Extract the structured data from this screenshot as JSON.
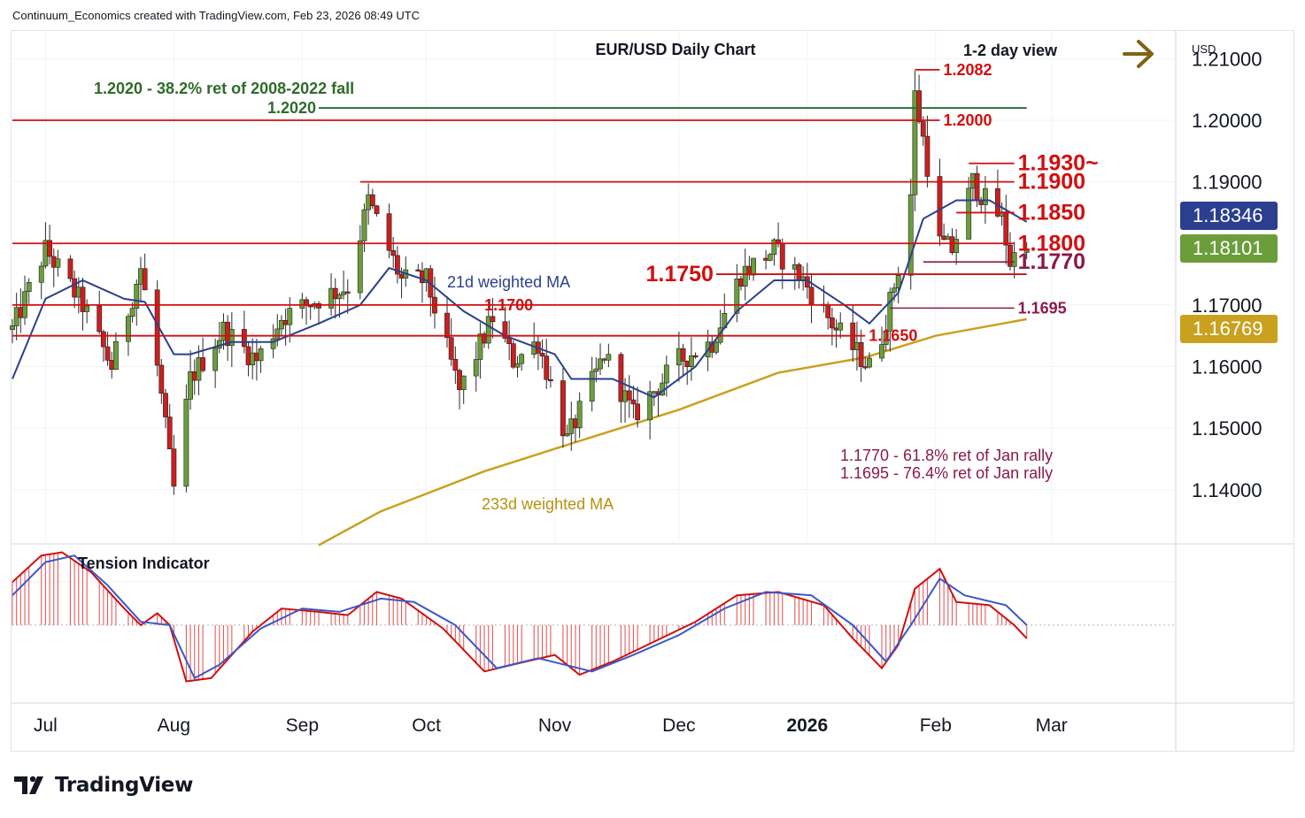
{
  "header": {
    "caption": "Continuum_Economics created with TradingView.com, Feb 23, 2026 08:49 UTC"
  },
  "chart_title": "EUR/USD Daily Chart",
  "view_label": "1-2 day view",
  "currency": "USD",
  "brand": "TradingView",
  "colors": {
    "up_candle": "#6b9e3b",
    "down_candle": "#cc1f1f",
    "wick": "#2a2a2a",
    "ma21": "#2b3f8e",
    "ma233": "#c9a11e",
    "level_red": "#d10f0f",
    "level_green": "#2e6b2a",
    "level_purple": "#8a1a4a",
    "arrow": "#806312",
    "badge_blue": "#2b3f8e",
    "badge_green": "#6b9e3b",
    "badge_gold": "#c9a11e",
    "tension_fill": "#e25b5b",
    "tension_blue": "#3a58c9"
  },
  "icons": {
    "arrow": "right-arrow-icon",
    "logo": "tradingview-logo-icon"
  },
  "chart_data": {
    "type": "candlestick",
    "title": "EUR/USD Daily Chart",
    "y_axis": {
      "ylim": [
        1.1315,
        1.2145
      ],
      "ticks": [
        "1.21000",
        "1.20000",
        "1.19000",
        "1.17000",
        "1.16000",
        "1.15000",
        "1.14000"
      ],
      "tick_values": [
        1.21,
        1.2,
        1.19,
        1.17,
        1.16,
        1.15,
        1.14
      ]
    },
    "x_axis": {
      "labels": [
        "Jul",
        "Aug",
        "Sep",
        "Oct",
        "Nov",
        "Dec",
        "2026",
        "Feb",
        "Mar"
      ],
      "label_dates": [
        "2025-07-01",
        "2025-08-01",
        "2025-09-01",
        "2025-10-01",
        "2025-11-01",
        "2025-12-01",
        "2026-01-01",
        "2026-02-01",
        "2026-03-01"
      ],
      "range": [
        "2025-06-23",
        "2026-03-31"
      ]
    },
    "price_badges": [
      {
        "value": "1.18346",
        "style": "blue"
      },
      {
        "value": "1.18101",
        "style": "green"
      },
      {
        "value": "1.16769",
        "style": "gold"
      }
    ],
    "levels": [
      {
        "label": "1.2082",
        "value": 1.2082,
        "from": "2026-01-27",
        "to": "2026-02-02",
        "color": "red",
        "label_size": "medium"
      },
      {
        "label": "1.2020",
        "value": 1.202,
        "from": "2025-09-05",
        "to": "2026-02-23",
        "color": "green",
        "label_size": "medium",
        "label_side": "left"
      },
      {
        "label": "1.2000",
        "value": 1.2,
        "from": "2025-06-23",
        "to": "2026-02-02",
        "color": "red",
        "label_size": "medium"
      },
      {
        "label": "1.1930~",
        "value": 1.193,
        "from": "2026-02-09",
        "to": "2026-02-20",
        "color": "red",
        "label_size": "large"
      },
      {
        "label": "1.1900",
        "value": 1.19,
        "from": "2025-09-15",
        "to": "2026-02-20",
        "color": "red",
        "label_size": "large"
      },
      {
        "label": "1.1850",
        "value": 1.185,
        "from": "2026-02-06",
        "to": "2026-02-20",
        "color": "red",
        "label_size": "large"
      },
      {
        "label": "1.1800",
        "value": 1.18,
        "from": "2025-06-23",
        "to": "2026-02-20",
        "color": "red",
        "label_size": "large"
      },
      {
        "label": "1.1770",
        "value": 1.177,
        "from": "2026-01-29",
        "to": "2026-02-20",
        "color": "purple",
        "label_size": "large"
      },
      {
        "label": "1.1750",
        "value": 1.175,
        "from": "2025-12-10",
        "to": "2026-02-23",
        "color": "red",
        "label_size": "large",
        "label_side": "left"
      },
      {
        "label": "1.1700",
        "value": 1.17,
        "from": "2025-06-23",
        "to": "2026-01-19",
        "color": "red",
        "label_size": "medium",
        "label_pos": "2025-10-15"
      },
      {
        "label": "1.1695",
        "value": 1.1695,
        "from": "2026-01-21",
        "to": "2026-02-20",
        "color": "purple",
        "label_size": "medium"
      },
      {
        "label": "1.1650",
        "value": 1.165,
        "from": "2025-06-23",
        "to": "2026-01-15",
        "color": "red",
        "label_size": "medium"
      }
    ],
    "annotations": [
      {
        "text": "1.2020 - 38.2% ret of 2008-2022 fall",
        "color": "green"
      },
      {
        "text": "21d weighted MA",
        "color": "blue"
      },
      {
        "text": "233d weighted MA",
        "color": "gold"
      },
      {
        "text": "1.1770 - 61.8% ret of Jan rally",
        "color": "purple"
      },
      {
        "text": "1.1695 - 76.4% ret of Jan rally",
        "color": "purple"
      }
    ],
    "anchors": [
      {
        "date": "2025-06-23",
        "close": 1.166
      },
      {
        "date": "2025-07-01",
        "close": 1.179
      },
      {
        "date": "2025-07-10",
        "close": 1.17
      },
      {
        "date": "2025-07-17",
        "close": 1.16
      },
      {
        "date": "2025-07-24",
        "close": 1.176
      },
      {
        "date": "2025-07-28",
        "close": 1.16
      },
      {
        "date": "2025-08-01",
        "close": 1.14
      },
      {
        "date": "2025-08-05",
        "close": 1.158
      },
      {
        "date": "2025-08-13",
        "close": 1.166
      },
      {
        "date": "2025-08-21",
        "close": 1.161
      },
      {
        "date": "2025-08-27",
        "close": 1.168
      },
      {
        "date": "2025-09-05",
        "close": 1.171
      },
      {
        "date": "2025-09-12",
        "close": 1.173
      },
      {
        "date": "2025-09-17",
        "close": 1.187
      },
      {
        "date": "2025-09-25",
        "close": 1.174
      },
      {
        "date": "2025-10-01",
        "close": 1.174
      },
      {
        "date": "2025-10-09",
        "close": 1.156
      },
      {
        "date": "2025-10-17",
        "close": 1.168
      },
      {
        "date": "2025-10-22",
        "close": 1.161
      },
      {
        "date": "2025-10-28",
        "close": 1.164
      },
      {
        "date": "2025-11-04",
        "close": 1.148
      },
      {
        "date": "2025-11-13",
        "close": 1.162
      },
      {
        "date": "2025-11-20",
        "close": 1.152
      },
      {
        "date": "2025-12-01",
        "close": 1.161
      },
      {
        "date": "2025-12-09",
        "close": 1.164
      },
      {
        "date": "2025-12-16",
        "close": 1.175
      },
      {
        "date": "2025-12-24",
        "close": 1.179
      },
      {
        "date": "2025-12-31",
        "close": 1.174
      },
      {
        "date": "2026-01-08",
        "close": 1.166
      },
      {
        "date": "2026-01-16",
        "close": 1.16
      },
      {
        "date": "2026-01-19",
        "close": 1.165
      },
      {
        "date": "2026-01-23",
        "close": 1.176
      },
      {
        "date": "2026-01-26",
        "close": 1.188
      },
      {
        "date": "2026-01-27",
        "close": 1.204
      },
      {
        "date": "2026-01-29",
        "close": 1.197
      },
      {
        "date": "2026-02-02",
        "close": 1.18
      },
      {
        "date": "2026-02-05",
        "close": 1.179
      },
      {
        "date": "2026-02-10",
        "close": 1.19
      },
      {
        "date": "2026-02-13",
        "close": 1.187
      },
      {
        "date": "2026-02-17",
        "close": 1.184
      },
      {
        "date": "2026-02-19",
        "close": 1.177
      },
      {
        "date": "2026-02-23",
        "close": 1.181
      }
    ],
    "ma21": {
      "name": "21d weighted MA",
      "points": [
        [
          "2025-06-23",
          1.158
        ],
        [
          "2025-07-01",
          1.171
        ],
        [
          "2025-07-10",
          1.174
        ],
        [
          "2025-07-20",
          1.171
        ],
        [
          "2025-07-25",
          1.1705
        ],
        [
          "2025-08-01",
          1.162
        ],
        [
          "2025-08-05",
          1.162
        ],
        [
          "2025-08-15",
          1.164
        ],
        [
          "2025-08-25",
          1.164
        ],
        [
          "2025-09-05",
          1.167
        ],
        [
          "2025-09-15",
          1.17
        ],
        [
          "2025-09-22",
          1.176
        ],
        [
          "2025-10-01",
          1.174
        ],
        [
          "2025-10-10",
          1.169
        ],
        [
          "2025-10-20",
          1.165
        ],
        [
          "2025-11-01",
          1.162
        ],
        [
          "2025-11-05",
          1.158
        ],
        [
          "2025-11-15",
          1.158
        ],
        [
          "2025-11-25",
          1.155
        ],
        [
          "2025-12-05",
          1.16
        ],
        [
          "2025-12-15",
          1.169
        ],
        [
          "2025-12-24",
          1.174
        ],
        [
          "2026-01-01",
          1.174
        ],
        [
          "2026-01-10",
          1.17
        ],
        [
          "2026-01-16",
          1.167
        ],
        [
          "2026-01-23",
          1.172
        ],
        [
          "2026-01-29",
          1.184
        ],
        [
          "2026-02-06",
          1.187
        ],
        [
          "2026-02-14",
          1.187
        ],
        [
          "2026-02-23",
          1.1835
        ]
      ]
    },
    "ma233": {
      "name": "233d weighted MA",
      "points": [
        [
          "2025-09-05",
          1.131
        ],
        [
          "2025-09-20",
          1.1365
        ],
        [
          "2025-10-15",
          1.143
        ],
        [
          "2025-11-05",
          1.1475
        ],
        [
          "2025-12-01",
          1.153
        ],
        [
          "2025-12-25",
          1.159
        ],
        [
          "2026-01-15",
          1.1615
        ],
        [
          "2026-02-01",
          1.165
        ],
        [
          "2026-02-23",
          1.1677
        ]
      ]
    },
    "tension": {
      "label": "Tension Indicator",
      "ylim": [
        -1.15,
        1.2
      ],
      "histogram": [
        [
          "2025-06-23",
          0.65
        ],
        [
          "2025-06-30",
          1.05
        ],
        [
          "2025-07-05",
          1.1
        ],
        [
          "2025-07-12",
          0.8
        ],
        [
          "2025-07-20",
          0.25
        ],
        [
          "2025-07-24",
          0.0
        ],
        [
          "2025-07-28",
          0.18
        ],
        [
          "2025-07-31",
          0.0
        ],
        [
          "2025-08-04",
          -0.85
        ],
        [
          "2025-08-10",
          -0.8
        ],
        [
          "2025-08-20",
          -0.1
        ],
        [
          "2025-08-27",
          0.25
        ],
        [
          "2025-09-05",
          0.2
        ],
        [
          "2025-09-12",
          0.15
        ],
        [
          "2025-09-19",
          0.5
        ],
        [
          "2025-09-25",
          0.4
        ],
        [
          "2025-10-05",
          -0.05
        ],
        [
          "2025-10-15",
          -0.7
        ],
        [
          "2025-10-25",
          -0.55
        ],
        [
          "2025-11-01",
          -0.45
        ],
        [
          "2025-11-07",
          -0.75
        ],
        [
          "2025-11-15",
          -0.55
        ],
        [
          "2025-11-25",
          -0.25
        ],
        [
          "2025-12-05",
          0.05
        ],
        [
          "2025-12-15",
          0.45
        ],
        [
          "2025-12-25",
          0.5
        ],
        [
          "2026-01-05",
          0.3
        ],
        [
          "2026-01-12",
          -0.2
        ],
        [
          "2026-01-19",
          -0.65
        ],
        [
          "2026-01-23",
          -0.3
        ],
        [
          "2026-01-27",
          0.55
        ],
        [
          "2026-02-02",
          0.85
        ],
        [
          "2026-02-06",
          0.35
        ],
        [
          "2026-02-14",
          0.3
        ],
        [
          "2026-02-20",
          0.0
        ],
        [
          "2026-02-23",
          -0.2
        ]
      ],
      "signal": [
        [
          "2025-06-23",
          0.45
        ],
        [
          "2025-07-01",
          0.95
        ],
        [
          "2025-07-08",
          1.05
        ],
        [
          "2025-07-16",
          0.6
        ],
        [
          "2025-07-24",
          0.05
        ],
        [
          "2025-07-31",
          0.0
        ],
        [
          "2025-08-06",
          -0.8
        ],
        [
          "2025-08-12",
          -0.6
        ],
        [
          "2025-08-22",
          -0.05
        ],
        [
          "2025-09-01",
          0.25
        ],
        [
          "2025-09-10",
          0.2
        ],
        [
          "2025-09-20",
          0.4
        ],
        [
          "2025-09-28",
          0.35
        ],
        [
          "2025-10-08",
          0.0
        ],
        [
          "2025-10-18",
          -0.65
        ],
        [
          "2025-10-28",
          -0.5
        ],
        [
          "2025-11-10",
          -0.7
        ],
        [
          "2025-11-20",
          -0.45
        ],
        [
          "2025-12-01",
          -0.15
        ],
        [
          "2025-12-12",
          0.25
        ],
        [
          "2025-12-22",
          0.5
        ],
        [
          "2026-01-02",
          0.45
        ],
        [
          "2026-01-12",
          0.0
        ],
        [
          "2026-01-20",
          -0.55
        ],
        [
          "2026-01-26",
          0.0
        ],
        [
          "2026-02-02",
          0.7
        ],
        [
          "2026-02-08",
          0.45
        ],
        [
          "2026-02-18",
          0.3
        ],
        [
          "2026-02-23",
          0.0
        ]
      ]
    }
  }
}
